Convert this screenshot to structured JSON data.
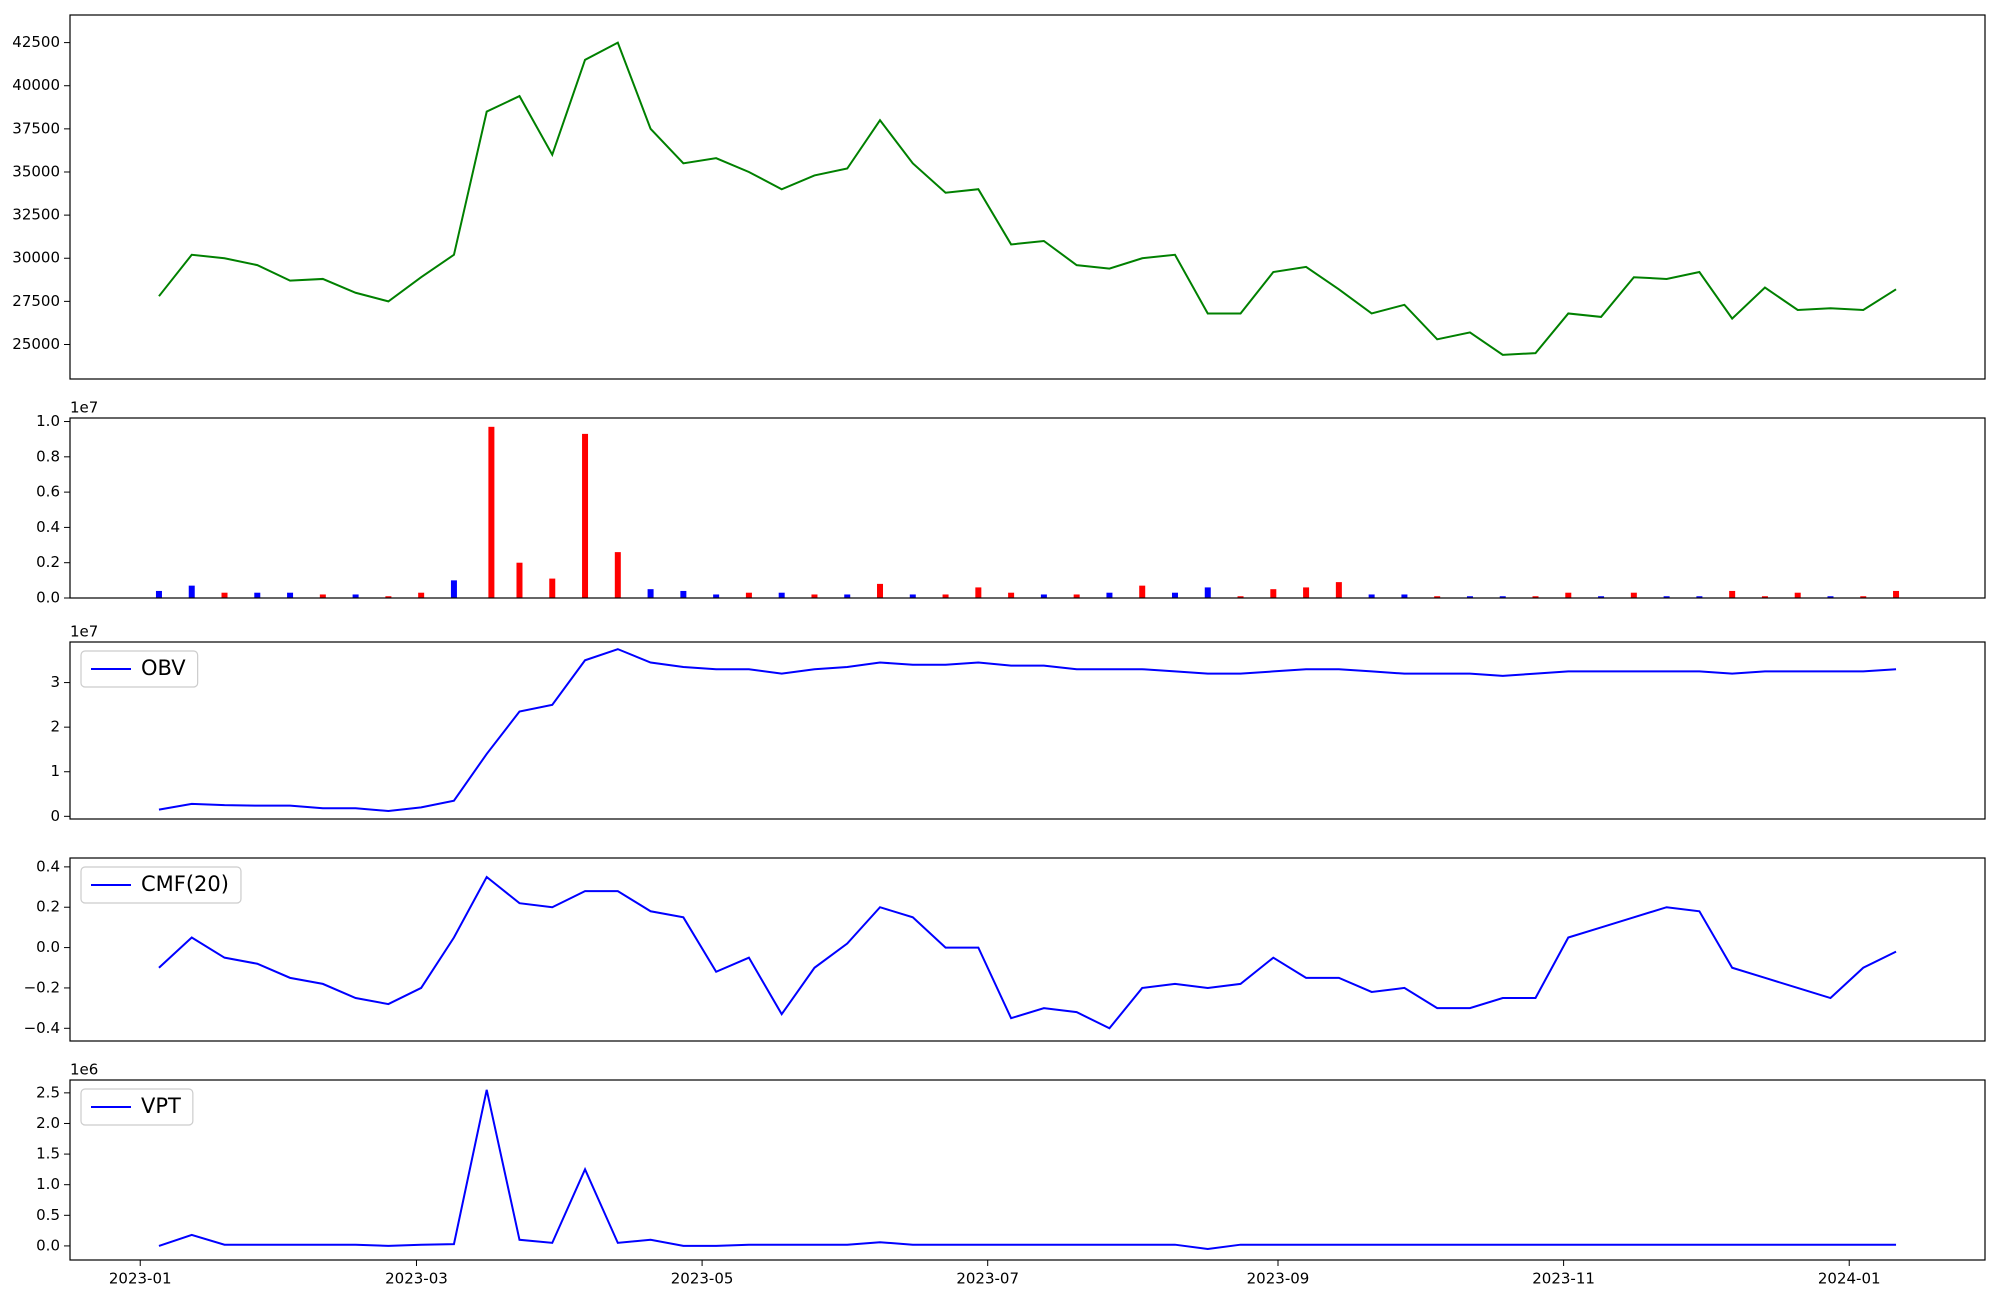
{
  "chart_data": [
    {
      "type": "line",
      "color": "green",
      "x": [
        4,
        11,
        18,
        25,
        32,
        39,
        46,
        53,
        60,
        67,
        74,
        81,
        88,
        95,
        102,
        109,
        116,
        123,
        130,
        137,
        144,
        151,
        158,
        165,
        172,
        179,
        186,
        193,
        200,
        207,
        214,
        221,
        228,
        235,
        242,
        249,
        256,
        263,
        270,
        277,
        284,
        291,
        298,
        305,
        312,
        319,
        326,
        333,
        340,
        347,
        354,
        361,
        368,
        375
      ],
      "values": [
        27800,
        30200,
        30000,
        29600,
        28700,
        28800,
        28000,
        27500,
        28900,
        30200,
        38500,
        39400,
        36000,
        41500,
        42500,
        37500,
        35500,
        35800,
        35000,
        34000,
        34800,
        35200,
        38000,
        35500,
        33800,
        34000,
        30800,
        31000,
        29600,
        29400,
        30000,
        30200,
        26800,
        26800,
        29200,
        29500,
        28200,
        26800,
        27300,
        25300,
        25700,
        24400,
        24500,
        26800,
        26600,
        28900,
        28800,
        29200,
        26500,
        28300,
        27000,
        27100,
        27000,
        28200
      ],
      "xlim": [
        -15,
        394
      ],
      "ylim": [
        23000,
        44100
      ],
      "yticks": [
        25000,
        27500,
        30000,
        32500,
        35000,
        37500,
        40000,
        42500
      ]
    },
    {
      "type": "bar",
      "y_offset_label": "1e7",
      "x": [
        4,
        11,
        18,
        25,
        32,
        39,
        46,
        53,
        60,
        67,
        75,
        81,
        88,
        95,
        102,
        109,
        116,
        123,
        130,
        137,
        144,
        151,
        158,
        165,
        172,
        179,
        186,
        193,
        200,
        207,
        214,
        221,
        228,
        235,
        242,
        249,
        256,
        263,
        270,
        277,
        284,
        291,
        298,
        305,
        312,
        319,
        326,
        333,
        340,
        347,
        354,
        361,
        368,
        375
      ],
      "values": [
        0.04,
        0.07,
        0.03,
        0.03,
        0.03,
        0.02,
        0.02,
        0.01,
        0.03,
        0.1,
        0.97,
        0.2,
        0.11,
        0.93,
        0.26,
        0.05,
        0.04,
        0.02,
        0.03,
        0.03,
        0.02,
        0.02,
        0.08,
        0.02,
        0.02,
        0.06,
        0.03,
        0.02,
        0.02,
        0.03,
        0.07,
        0.03,
        0.06,
        0.01,
        0.05,
        0.06,
        0.09,
        0.02,
        0.02,
        0.01,
        0.01,
        0.01,
        0.01,
        0.03,
        0.01,
        0.03,
        0.01,
        0.01,
        0.04,
        0.01,
        0.03,
        0.01,
        0.01,
        0.04
      ],
      "colors": [
        "blue",
        "blue",
        "red",
        "blue",
        "blue",
        "red",
        "blue",
        "red",
        "red",
        "blue",
        "red",
        "red",
        "red",
        "red",
        "red",
        "blue",
        "blue",
        "blue",
        "red",
        "blue",
        "red",
        "blue",
        "red",
        "blue",
        "red",
        "red",
        "red",
        "blue",
        "red",
        "blue",
        "red",
        "blue",
        "blue",
        "red",
        "red",
        "red",
        "red",
        "blue",
        "blue",
        "red",
        "blue",
        "blue",
        "red",
        "red",
        "blue",
        "red",
        "blue",
        "blue",
        "red",
        "red",
        "red",
        "blue",
        "red",
        "red"
      ],
      "xlim": [
        -15,
        394
      ],
      "ylim": [
        0,
        1.02
      ],
      "yticks": [
        {
          "value": 0,
          "label": "0.0"
        },
        0.2,
        0.4,
        0.6,
        0.8,
        {
          "value": 1,
          "label": "1.0"
        }
      ]
    },
    {
      "type": "line",
      "y_offset_label": "1e7",
      "legend": "upper left",
      "x": [
        4,
        11,
        18,
        25,
        32,
        39,
        46,
        53,
        60,
        67,
        74,
        81,
        88,
        95,
        102,
        109,
        116,
        123,
        130,
        137,
        144,
        151,
        158,
        165,
        172,
        179,
        186,
        193,
        200,
        207,
        214,
        221,
        228,
        235,
        242,
        249,
        256,
        263,
        270,
        277,
        284,
        291,
        298,
        305,
        312,
        319,
        326,
        333,
        340,
        347,
        354,
        361,
        368,
        375
      ],
      "series": [
        {
          "name": "OBV",
          "color": "blue",
          "values": [
            0.15,
            0.28,
            0.25,
            0.24,
            0.24,
            0.18,
            0.18,
            0.12,
            0.2,
            0.35,
            1.4,
            2.35,
            2.5,
            3.5,
            3.75,
            3.45,
            3.35,
            3.3,
            3.3,
            3.2,
            3.3,
            3.35,
            3.45,
            3.4,
            3.4,
            3.45,
            3.38,
            3.38,
            3.3,
            3.3,
            3.3,
            3.25,
            3.2,
            3.2,
            3.25,
            3.3,
            3.3,
            3.25,
            3.2,
            3.2,
            3.2,
            3.15,
            3.2,
            3.25,
            3.25,
            3.25,
            3.25,
            3.25,
            3.2,
            3.25,
            3.25,
            3.25,
            3.25,
            3.3
          ]
        }
      ],
      "xlim": [
        -15,
        394
      ],
      "ylim": [
        -0.06,
        3.91
      ],
      "yticks": [
        0,
        1,
        2,
        3
      ]
    },
    {
      "type": "line",
      "legend": "upper left",
      "x": [
        4,
        11,
        18,
        25,
        32,
        39,
        46,
        53,
        60,
        67,
        74,
        81,
        88,
        95,
        102,
        109,
        116,
        123,
        130,
        137,
        144,
        151,
        158,
        165,
        172,
        179,
        186,
        193,
        200,
        207,
        214,
        221,
        228,
        235,
        242,
        249,
        256,
        263,
        270,
        277,
        284,
        291,
        298,
        305,
        312,
        319,
        326,
        333,
        340,
        347,
        354,
        361,
        368,
        375
      ],
      "series": [
        {
          "name": "CMF(20)",
          "color": "blue",
          "values": [
            -0.1,
            0.05,
            -0.05,
            -0.08,
            -0.15,
            -0.18,
            -0.25,
            -0.28,
            -0.2,
            0.05,
            0.35,
            0.22,
            0.2,
            0.28,
            0.28,
            0.18,
            0.15,
            -0.12,
            -0.05,
            -0.33,
            -0.1,
            0.02,
            0.2,
            0.15,
            0,
            0,
            -0.35,
            -0.3,
            -0.32,
            -0.4,
            -0.2,
            -0.18,
            -0.2,
            -0.18,
            -0.05,
            -0.15,
            -0.15,
            -0.22,
            -0.2,
            -0.3,
            -0.3,
            -0.25,
            -0.25,
            0.05,
            0.1,
            0.15,
            0.2,
            0.18,
            -0.1,
            -0.15,
            -0.2,
            -0.25,
            -0.1,
            -0.02
          ]
        }
      ],
      "xlim": [
        -15,
        394
      ],
      "ylim": [
        -0.463,
        0.444
      ],
      "yticks": [
        {
          "value": -0.4,
          "label": "−0.4"
        },
        {
          "value": -0.2,
          "label": "−0.2"
        },
        {
          "value": 0,
          "label": "0.0"
        },
        0.2,
        0.4
      ]
    },
    {
      "type": "line",
      "y_offset_label": "1e6",
      "legend": "upper left",
      "x": [
        4,
        11,
        18,
        25,
        32,
        39,
        46,
        53,
        60,
        67,
        74,
        81,
        88,
        95,
        102,
        109,
        116,
        123,
        130,
        137,
        144,
        151,
        158,
        165,
        172,
        179,
        186,
        193,
        200,
        207,
        214,
        221,
        228,
        235,
        242,
        249,
        256,
        263,
        270,
        277,
        284,
        291,
        298,
        305,
        312,
        319,
        326,
        333,
        340,
        347,
        354,
        361,
        368,
        375
      ],
      "series": [
        {
          "name": "VPT",
          "color": "blue",
          "values": [
            0,
            0.18,
            0.02,
            0.02,
            0.02,
            0.02,
            0.02,
            0,
            0.02,
            0.03,
            2.55,
            0.1,
            0.05,
            1.25,
            0.05,
            0.1,
            0,
            0,
            0.02,
            0.02,
            0.02,
            0.02,
            0.06,
            0.02,
            0.02,
            0.02,
            0.02,
            0.02,
            0.02,
            0.02,
            0.02,
            0.02,
            -0.05,
            0.02,
            0.02,
            0.02,
            0.02,
            0.02,
            0.02,
            0.02,
            0.02,
            0.02,
            0.02,
            0.02,
            0.02,
            0.02,
            0.02,
            0.02,
            0.02,
            0.02,
            0.02,
            0.02,
            0.02,
            0.02
          ]
        }
      ],
      "xlim": [
        -15,
        394
      ],
      "ylim": [
        -0.23,
        2.71
      ],
      "yticks": [
        {
          "value": 0,
          "label": "0.0"
        },
        0.5,
        {
          "value": 1,
          "label": "1.0"
        },
        1.5,
        {
          "value": 2,
          "label": "2.0"
        },
        2.5
      ],
      "xticks": [
        {
          "value": 0,
          "label": "2023-01"
        },
        {
          "value": 59,
          "label": "2023-03"
        },
        {
          "value": 120,
          "label": "2023-05"
        },
        {
          "value": 181,
          "label": "2023-07"
        },
        {
          "value": 243,
          "label": "2023-09"
        },
        {
          "value": 304,
          "label": "2023-11"
        },
        {
          "value": 365,
          "label": "2024-01"
        }
      ]
    }
  ]
}
